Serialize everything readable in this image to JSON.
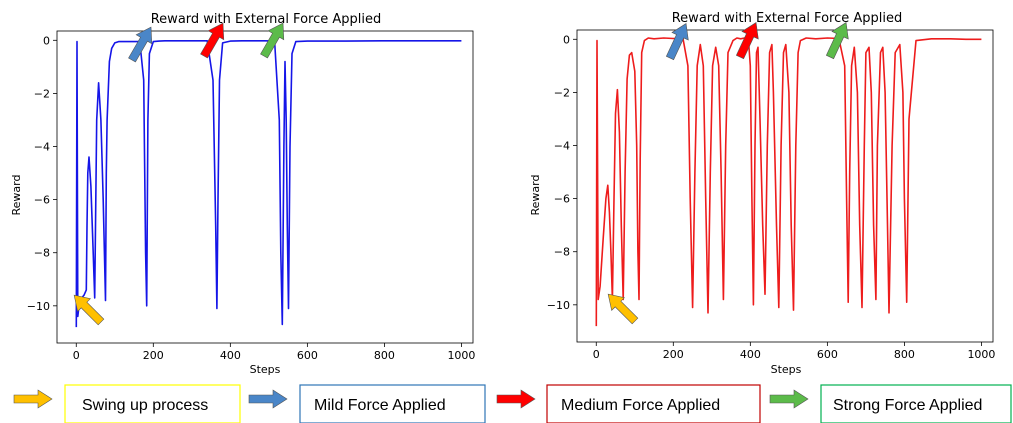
{
  "chart_data": [
    {
      "type": "line",
      "title": "Reward with External Force Applied",
      "xlabel": "Steps",
      "ylabel": "Reward",
      "xlim": [
        -50,
        1030
      ],
      "ylim": [
        -11.4,
        0.35
      ],
      "x_ticks": [
        0,
        200,
        400,
        600,
        800,
        1000
      ],
      "y_ticks": [
        0,
        -2,
        -4,
        -6,
        -8,
        -10
      ],
      "series": [
        {
          "color": "#1515e8",
          "x": [
            0,
            2,
            4,
            8,
            14,
            20,
            26,
            28,
            30,
            33,
            38,
            44,
            48,
            50,
            53,
            58,
            64,
            70,
            76,
            78,
            80,
            86,
            92,
            100,
            110,
            122,
            135,
            150,
            165,
            175,
            180,
            183,
            186,
            190,
            200,
            215,
            230,
            260,
            300,
            340,
            355,
            362,
            365,
            368,
            372,
            380,
            400,
            430,
            460,
            490,
            515,
            527,
            531,
            535,
            539,
            542,
            545,
            548,
            551,
            555,
            560,
            570,
            600,
            700,
            800,
            900,
            1000
          ],
          "y": [
            -10.8,
            -0.05,
            -10.4,
            -9.9,
            -9.7,
            -9.6,
            -9.4,
            -7,
            -5,
            -4.4,
            -5.5,
            -8,
            -9.7,
            -7,
            -3,
            -1.6,
            -3,
            -6,
            -9.8,
            -5,
            -3,
            -0.8,
            -0.3,
            -0.1,
            -0.05,
            -0.05,
            -0.05,
            -0.05,
            -0.05,
            -1.5,
            -8,
            -10,
            -3,
            -0.5,
            -0.05,
            -0.03,
            -0.02,
            -0.02,
            -0.02,
            -0.02,
            -1.5,
            -7,
            -10.1,
            -6,
            -1.5,
            -0.1,
            -0.03,
            -0.02,
            -0.02,
            -0.02,
            -0.03,
            -3,
            -8,
            -10.7,
            -4,
            -0.8,
            -3,
            -7,
            -10.1,
            -4,
            -0.5,
            -0.05,
            -0.03,
            -0.03,
            -0.02,
            -0.02,
            -0.02
          ]
        }
      ]
    },
    {
      "type": "line",
      "title": "Reward with External Force Applied",
      "xlabel": "Steps",
      "ylabel": "Reward",
      "xlim": [
        -50,
        1030
      ],
      "ylim": [
        -11.4,
        0.35
      ],
      "x_ticks": [
        0,
        200,
        400,
        600,
        800,
        1000
      ],
      "y_ticks": [
        0,
        -2,
        -4,
        -6,
        -8,
        -10
      ],
      "series": [
        {
          "color": "#ee1c1c",
          "x": [
            0,
            2,
            5,
            10,
            18,
            25,
            30,
            34,
            38,
            42,
            46,
            50,
            55,
            60,
            65,
            70,
            75,
            80,
            86,
            92,
            100,
            105,
            108,
            111,
            114,
            118,
            125,
            135,
            150,
            175,
            200,
            225,
            238,
            244,
            250,
            256,
            262,
            270,
            278,
            284,
            290,
            296,
            302,
            310,
            318,
            324,
            330,
            336,
            342,
            355,
            365,
            375,
            385,
            395,
            400,
            404,
            408,
            412,
            416,
            420,
            425,
            432,
            438,
            444,
            450,
            456,
            460,
            468,
            474,
            480,
            486,
            492,
            500,
            506,
            512,
            518,
            524,
            530,
            545,
            570,
            600,
            630,
            645,
            650,
            654,
            658,
            663,
            670,
            678,
            684,
            690,
            696,
            700,
            708,
            714,
            720,
            726,
            730,
            738,
            744,
            750,
            756,
            760,
            768,
            776,
            788,
            796,
            800,
            806,
            812,
            830,
            870,
            920,
            960,
            1000
          ],
          "y": [
            -10.8,
            -0.05,
            -9.8,
            -9.3,
            -7.5,
            -6,
            -5.5,
            -6.5,
            -8,
            -9.8,
            -6,
            -2.8,
            -1.9,
            -3.5,
            -7,
            -9.8,
            -5,
            -1.5,
            -0.6,
            -0.5,
            -1.2,
            -4,
            -8,
            -9.8,
            -4.5,
            -0.5,
            -0.05,
            0.05,
            0.02,
            0.05,
            0.03,
            0.05,
            -1,
            -6,
            -10.1,
            -5,
            -1,
            -0.2,
            -1,
            -6,
            -10.3,
            -5,
            -1,
            -0.3,
            -1,
            -5,
            -9.8,
            -4,
            -0.5,
            -0.05,
            0.05,
            0.02,
            0.05,
            0.03,
            -1,
            -6,
            -10,
            -4,
            -0.5,
            -0.3,
            -3,
            -7,
            -9.6,
            -4,
            -0.5,
            -0.2,
            -2,
            -7,
            -10.1,
            -4,
            -0.5,
            -0.2,
            -2,
            -7,
            -10.2,
            -4,
            -0.5,
            -0.05,
            0.05,
            0.02,
            0.05,
            0.03,
            -1,
            -6,
            -9.9,
            -5,
            -1,
            -0.3,
            -2,
            -7,
            -10.1,
            -4,
            -0.5,
            -0.3,
            -2,
            -7,
            -9.8,
            -4,
            -0.5,
            -0.3,
            -2,
            -7,
            -10.3,
            -4,
            -0.5,
            -0.2,
            -2,
            -6,
            -9.9,
            -3,
            -0.05,
            0.02,
            0.02,
            0,
            0
          ]
        }
      ]
    }
  ],
  "legend": [
    {
      "label": "Swing up process",
      "arrow_color": "#ffc000",
      "border_color": "#ffff00"
    },
    {
      "label": "Mild Force Applied",
      "arrow_color": "#4a86c8",
      "border_color": "#2e75b6"
    },
    {
      "label": "Medium Force Applied",
      "arrow_color": "#ff0000",
      "border_color": "#c00000"
    },
    {
      "label": "Strong Force Applied",
      "arrow_color": "#5cbb4a",
      "border_color": "#00b050"
    }
  ]
}
